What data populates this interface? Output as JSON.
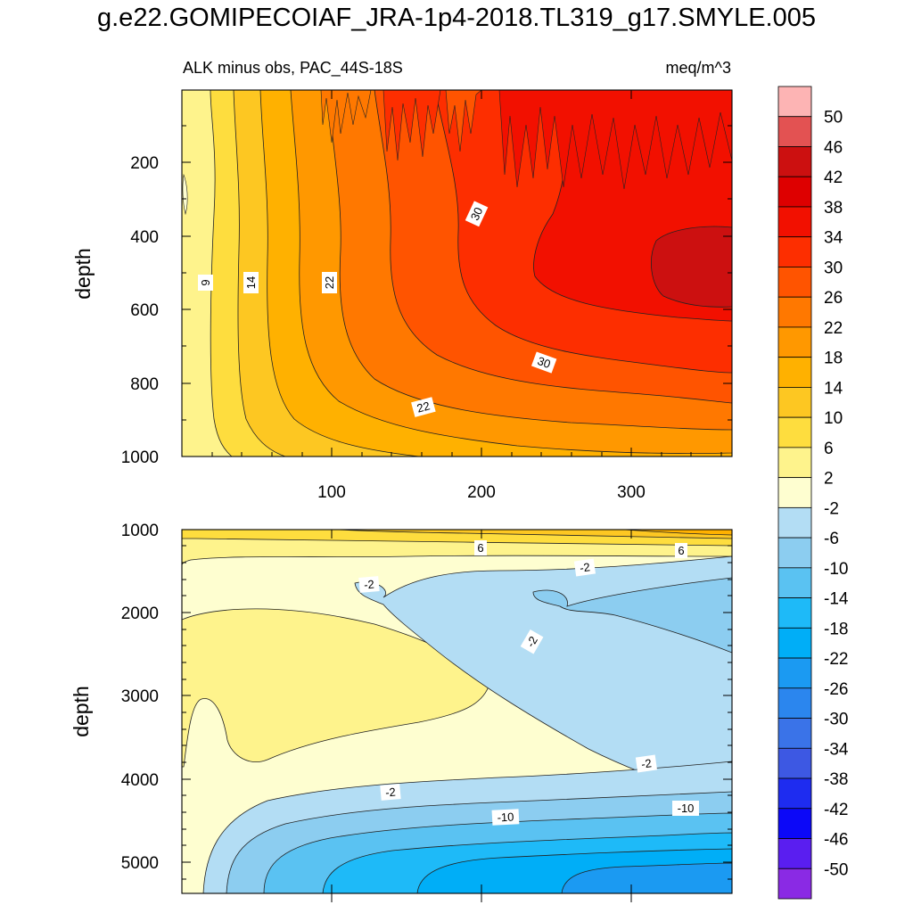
{
  "figure_title": "g.e22.GOMIPECOIAF_JRA-1p4-2018.TL319_g17.SMYLE.005",
  "chart_data": [
    {
      "type": "heatmap",
      "panel": "upper",
      "title_left": "ALK minus obs, PAC_44S-18S",
      "title_right": "meq/m^3",
      "ylabel": "depth",
      "xlabel": "",
      "xlim": [
        0,
        365
      ],
      "ylim": [
        0,
        1000
      ],
      "y_reversed": true,
      "xticks": [
        "100",
        "200",
        "300"
      ],
      "yticks": [
        "200",
        "400",
        "600",
        "800",
        "1000"
      ],
      "contour_labels": [
        "9",
        "14",
        "22",
        "30",
        "30",
        "22"
      ]
    },
    {
      "type": "heatmap",
      "panel": "lower",
      "ylabel": "depth",
      "xlabel": "",
      "xlim": [
        0,
        365
      ],
      "ylim": [
        1000,
        5375
      ],
      "y_reversed": true,
      "yticks": [
        "1000",
        "2000",
        "3000",
        "4000",
        "5000"
      ],
      "contour_labels": [
        "6",
        "6",
        "-2",
        "-2",
        "-2",
        "-2",
        "-2",
        "-10",
        "-10"
      ]
    }
  ],
  "colorbar": {
    "levels": [
      "50",
      "46",
      "42",
      "38",
      "34",
      "30",
      "26",
      "22",
      "18",
      "14",
      "10",
      "6",
      "2",
      "-2",
      "-6",
      "-10",
      "-14",
      "-18",
      "-22",
      "-26",
      "-30",
      "-34",
      "-38",
      "-42",
      "-46",
      "-50"
    ],
    "colors": [
      "#fdb4b4",
      "#e35252",
      "#cc1010",
      "#de0000",
      "#f21000",
      "#fd2e00",
      "#ff5400",
      "#ff7800",
      "#ff9800",
      "#ffb100",
      "#fdc722",
      "#fedd3e",
      "#fef38c",
      "#fefed0",
      "#b3ddf4",
      "#8ccdf0",
      "#5ac2f2",
      "#1ebaf8",
      "#00aef7",
      "#1b9af2",
      "#2b86ee",
      "#3a73e8",
      "#3d58e3",
      "#1e2cf0",
      "#0c08f8",
      "#5a1ef0",
      "#8a2ae4"
    ]
  }
}
